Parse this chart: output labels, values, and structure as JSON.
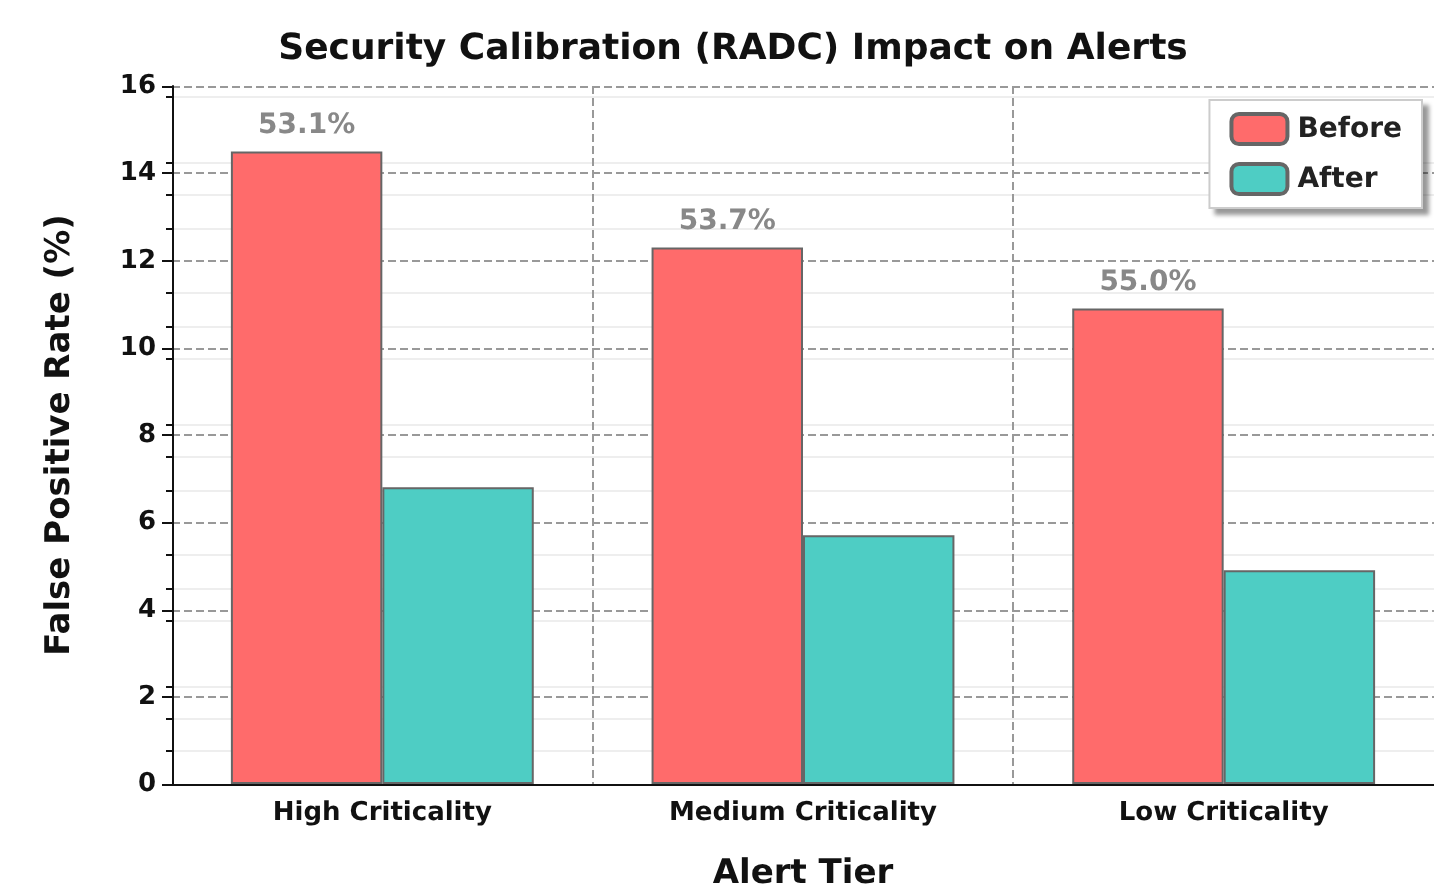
{
  "chart_data": {
    "type": "bar",
    "title": "Security Calibration (RADC) Impact on Alerts",
    "xlabel": "Alert Tier",
    "ylabel": "False Positive Rate (%)",
    "categories": [
      "High Criticality",
      "Medium Criticality",
      "Low Criticality"
    ],
    "series": [
      {
        "name": "Before",
        "color": "#ff6b6b",
        "values": [
          14.5,
          12.3,
          10.9
        ]
      },
      {
        "name": "After",
        "color": "#4ecdc4",
        "values": [
          6.8,
          5.7,
          4.9
        ]
      }
    ],
    "ylim": [
      0,
      16
    ],
    "yticks": [
      0,
      2,
      4,
      6,
      8,
      10,
      12,
      14,
      16
    ],
    "grid": true,
    "legend": "top right",
    "annotations": [
      {
        "text": "53.1%",
        "x": "High Criticality",
        "y": 14.5
      },
      {
        "text": "53.7%",
        "x": "Medium Criticality",
        "y": 12.3
      },
      {
        "text": "55.0%",
        "x": "Low Criticality",
        "y": 10.9
      }
    ]
  }
}
